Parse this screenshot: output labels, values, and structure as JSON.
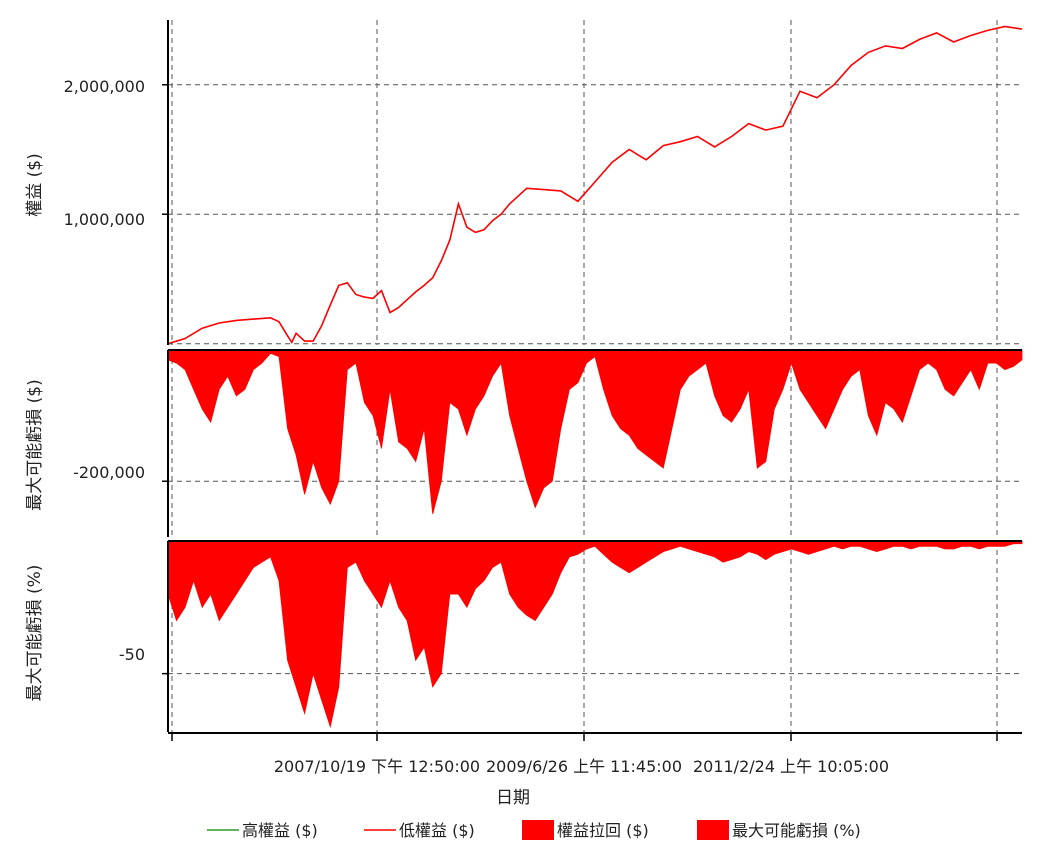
{
  "chart_data": {
    "type": "area",
    "xlabel": "日期",
    "x_tick_labels": [
      "2007/10/19 下午 12:50:00",
      "2009/6/26 上午 11:45:00",
      "2011/2/24 上午 10:05:00"
    ],
    "colors": {
      "high_equity": "#2e9a2e",
      "low_equity": "#ff0000",
      "drawdown": "#ff0000",
      "grid": "#555555"
    },
    "legend": [
      {
        "label": "高權益 ($)",
        "style": "line",
        "color": "#2e9a2e"
      },
      {
        "label": "低權益 ($)",
        "style": "line",
        "color": "#ff0000"
      },
      {
        "label": "權益拉回 ($)",
        "style": "box",
        "color": "#ff0000"
      },
      {
        "label": "最大可能虧損 (%)",
        "style": "box",
        "color": "#ff0000"
      }
    ],
    "panels": [
      {
        "name": "equity",
        "ylabel": "權益 ($)",
        "ylim": [
          -10000,
          2500000
        ],
        "y_ticks": [
          1000000,
          2000000
        ],
        "y_tick_labels": [
          "1,000,000",
          "2,000,000"
        ],
        "series": [
          {
            "name": "低權益 ($)",
            "x": [
              0,
              0.02,
              0.04,
              0.06,
              0.08,
              0.1,
              0.12,
              0.13,
              0.14,
              0.145,
              0.15,
              0.16,
              0.17,
              0.18,
              0.19,
              0.2,
              0.21,
              0.22,
              0.23,
              0.24,
              0.25,
              0.26,
              0.27,
              0.28,
              0.29,
              0.3,
              0.31,
              0.32,
              0.33,
              0.34,
              0.35,
              0.36,
              0.37,
              0.38,
              0.39,
              0.4,
              0.42,
              0.44,
              0.46,
              0.48,
              0.5,
              0.52,
              0.54,
              0.56,
              0.58,
              0.6,
              0.62,
              0.64,
              0.66,
              0.68,
              0.7,
              0.72,
              0.74,
              0.76,
              0.78,
              0.8,
              0.82,
              0.84,
              0.86,
              0.88,
              0.9,
              0.92,
              0.94,
              0.96,
              0.98,
              1.0
            ],
            "values": [
              0,
              40000,
              120000,
              160000,
              180000,
              190000,
              200000,
              170000,
              60000,
              10000,
              80000,
              20000,
              20000,
              140000,
              300000,
              450000,
              470000,
              380000,
              360000,
              350000,
              410000,
              240000,
              280000,
              340000,
              400000,
              450000,
              510000,
              640000,
              800000,
              1080000,
              900000,
              860000,
              880000,
              950000,
              1000000,
              1080000,
              1200000,
              1190000,
              1180000,
              1100000,
              1250000,
              1400000,
              1500000,
              1420000,
              1530000,
              1560000,
              1600000,
              1520000,
              1600000,
              1700000,
              1650000,
              1680000,
              1950000,
              1900000,
              2000000,
              2150000,
              2250000,
              2300000,
              2280000,
              2350000,
              2400000,
              2330000,
              2380000,
              2420000,
              2450000,
              2430000
            ]
          }
        ]
      },
      {
        "name": "drawdown_dollar",
        "ylabel": "最大可能虧損 ($)",
        "ylim": [
          -285000,
          0
        ],
        "y_ticks": [
          -200000
        ],
        "y_tick_labels": [
          "-200,000"
        ],
        "series": [
          {
            "name": "權益拉回 ($)",
            "x": [
              0,
              0.01,
              0.02,
              0.03,
              0.04,
              0.05,
              0.06,
              0.07,
              0.08,
              0.09,
              0.1,
              0.11,
              0.12,
              0.13,
              0.14,
              0.15,
              0.16,
              0.17,
              0.18,
              0.19,
              0.2,
              0.21,
              0.22,
              0.23,
              0.24,
              0.25,
              0.26,
              0.27,
              0.28,
              0.29,
              0.3,
              0.31,
              0.32,
              0.33,
              0.34,
              0.35,
              0.36,
              0.37,
              0.38,
              0.39,
              0.4,
              0.41,
              0.42,
              0.43,
              0.44,
              0.45,
              0.46,
              0.47,
              0.48,
              0.49,
              0.5,
              0.51,
              0.52,
              0.53,
              0.54,
              0.55,
              0.56,
              0.57,
              0.58,
              0.59,
              0.6,
              0.61,
              0.62,
              0.63,
              0.64,
              0.65,
              0.66,
              0.67,
              0.68,
              0.69,
              0.7,
              0.71,
              0.72,
              0.73,
              0.74,
              0.75,
              0.76,
              0.77,
              0.78,
              0.79,
              0.8,
              0.81,
              0.82,
              0.83,
              0.84,
              0.85,
              0.86,
              0.87,
              0.88,
              0.89,
              0.9,
              0.91,
              0.92,
              0.93,
              0.94,
              0.95,
              0.96,
              0.97,
              0.98,
              0.99,
              1.0
            ],
            "values": [
              -15000,
              -20000,
              -30000,
              -60000,
              -90000,
              -110000,
              -60000,
              -40000,
              -70000,
              -60000,
              -30000,
              -20000,
              -5000,
              -10000,
              -120000,
              -160000,
              -220000,
              -170000,
              -210000,
              -235000,
              -200000,
              -30000,
              -20000,
              -80000,
              -100000,
              -150000,
              -60000,
              -140000,
              -150000,
              -170000,
              -120000,
              -250000,
              -200000,
              -80000,
              -90000,
              -130000,
              -90000,
              -70000,
              -40000,
              -20000,
              -100000,
              -150000,
              -200000,
              -240000,
              -210000,
              -200000,
              -120000,
              -60000,
              -50000,
              -20000,
              -10000,
              -60000,
              -100000,
              -120000,
              -130000,
              -150000,
              -160000,
              -170000,
              -180000,
              -120000,
              -60000,
              -40000,
              -30000,
              -20000,
              -70000,
              -100000,
              -110000,
              -90000,
              -60000,
              -180000,
              -170000,
              -90000,
              -60000,
              -20000,
              -60000,
              -80000,
              -100000,
              -120000,
              -90000,
              -60000,
              -40000,
              -30000,
              -100000,
              -130000,
              -80000,
              -90000,
              -110000,
              -70000,
              -30000,
              -20000,
              -30000,
              -60000,
              -70000,
              -50000,
              -30000,
              -60000,
              -20000,
              -20000,
              -30000,
              -25000,
              -15000
            ]
          }
        ]
      },
      {
        "name": "drawdown_percent",
        "ylabel": "最大可能虧損 (%)",
        "ylim": [
          -72,
          0
        ],
        "y_ticks": [
          -50
        ],
        "y_tick_labels": [
          "-50"
        ],
        "series": [
          {
            "name": "最大可能虧損 (%)",
            "x": [
              0,
              0.01,
              0.02,
              0.03,
              0.04,
              0.05,
              0.06,
              0.07,
              0.08,
              0.09,
              0.1,
              0.11,
              0.12,
              0.13,
              0.14,
              0.15,
              0.16,
              0.17,
              0.18,
              0.19,
              0.2,
              0.21,
              0.22,
              0.23,
              0.24,
              0.25,
              0.26,
              0.27,
              0.28,
              0.29,
              0.3,
              0.31,
              0.32,
              0.33,
              0.34,
              0.35,
              0.36,
              0.37,
              0.38,
              0.39,
              0.4,
              0.41,
              0.42,
              0.43,
              0.44,
              0.45,
              0.46,
              0.47,
              0.48,
              0.49,
              0.5,
              0.51,
              0.52,
              0.53,
              0.54,
              0.55,
              0.56,
              0.57,
              0.58,
              0.59,
              0.6,
              0.61,
              0.62,
              0.63,
              0.64,
              0.65,
              0.66,
              0.67,
              0.68,
              0.69,
              0.7,
              0.71,
              0.72,
              0.73,
              0.74,
              0.75,
              0.76,
              0.77,
              0.78,
              0.79,
              0.8,
              0.81,
              0.82,
              0.83,
              0.84,
              0.85,
              0.86,
              0.87,
              0.88,
              0.89,
              0.9,
              0.91,
              0.92,
              0.93,
              0.94,
              0.95,
              0.96,
              0.97,
              0.98,
              0.99,
              1.0
            ],
            "values": [
              -20,
              -30,
              -25,
              -15,
              -25,
              -20,
              -30,
              -25,
              -20,
              -15,
              -10,
              -8,
              -6,
              -15,
              -45,
              -55,
              -65,
              -50,
              -60,
              -70,
              -55,
              -10,
              -8,
              -15,
              -20,
              -25,
              -15,
              -25,
              -30,
              -45,
              -40,
              -55,
              -50,
              -20,
              -20,
              -25,
              -18,
              -15,
              -10,
              -8,
              -20,
              -25,
              -28,
              -30,
              -25,
              -20,
              -12,
              -6,
              -5,
              -3,
              -2,
              -5,
              -8,
              -10,
              -12,
              -10,
              -8,
              -6,
              -4,
              -3,
              -2,
              -3,
              -4,
              -5,
              -6,
              -8,
              -7,
              -6,
              -4,
              -5,
              -7,
              -5,
              -4,
              -3,
              -4,
              -5,
              -4,
              -3,
              -2,
              -3,
              -2,
              -2,
              -3,
              -4,
              -3,
              -2,
              -2,
              -3,
              -2,
              -2,
              -2,
              -3,
              -3,
              -2,
              -2,
              -3,
              -2,
              -2,
              -2,
              -1,
              -1
            ]
          }
        ]
      }
    ]
  }
}
